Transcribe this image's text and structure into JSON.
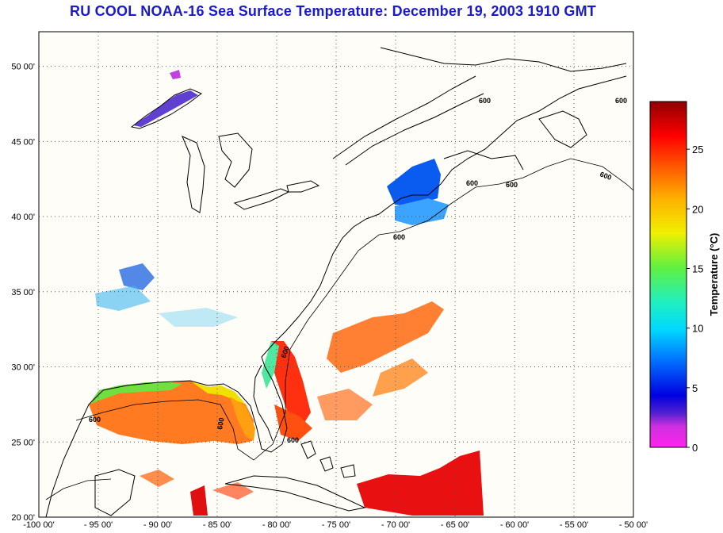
{
  "title": "RU COOL  NOAA-16  Sea Surface Temperature:  December 19, 2003 1910 GMT",
  "colors": {
    "title": "#1a1acc",
    "land": "#fffdf8",
    "coast": "#000000",
    "grid": "#555555"
  },
  "map": {
    "lon_ticks": [
      {
        "value": -100,
        "label": "-100 00'"
      },
      {
        "value": -95,
        "label": "- 95 00'"
      },
      {
        "value": -90,
        "label": "- 90 00'"
      },
      {
        "value": -85,
        "label": "- 85 00'"
      },
      {
        "value": -80,
        "label": "- 80 00'"
      },
      {
        "value": -75,
        "label": "- 75 00'"
      },
      {
        "value": -70,
        "label": "- 70 00'"
      },
      {
        "value": -65,
        "label": "- 65 00'"
      },
      {
        "value": -60,
        "label": "- 60 00'"
      },
      {
        "value": -55,
        "label": "- 55 00'"
      },
      {
        "value": -50,
        "label": "- 50 00'"
      }
    ],
    "lat_ticks": [
      {
        "value": 20,
        "label": "20 00'"
      },
      {
        "value": 25,
        "label": "25 00'"
      },
      {
        "value": 30,
        "label": "30 00'"
      },
      {
        "value": 35,
        "label": "35 00'"
      },
      {
        "value": 40,
        "label": "40 00'"
      },
      {
        "value": 45,
        "label": "45 00'"
      },
      {
        "value": 50,
        "label": "50 00'"
      }
    ],
    "lon_range": [
      -100,
      -50
    ],
    "lat_range": [
      20,
      52.3
    ],
    "contour_labels": [
      "600",
      "600",
      "600",
      "600",
      "600",
      "600",
      "600",
      "600",
      "600",
      "600"
    ]
  },
  "colorbar": {
    "label": "Temperature (°C)",
    "ticks": [
      "0",
      "5",
      "10",
      "15",
      "20",
      "25"
    ],
    "range": [
      0,
      29
    ]
  }
}
